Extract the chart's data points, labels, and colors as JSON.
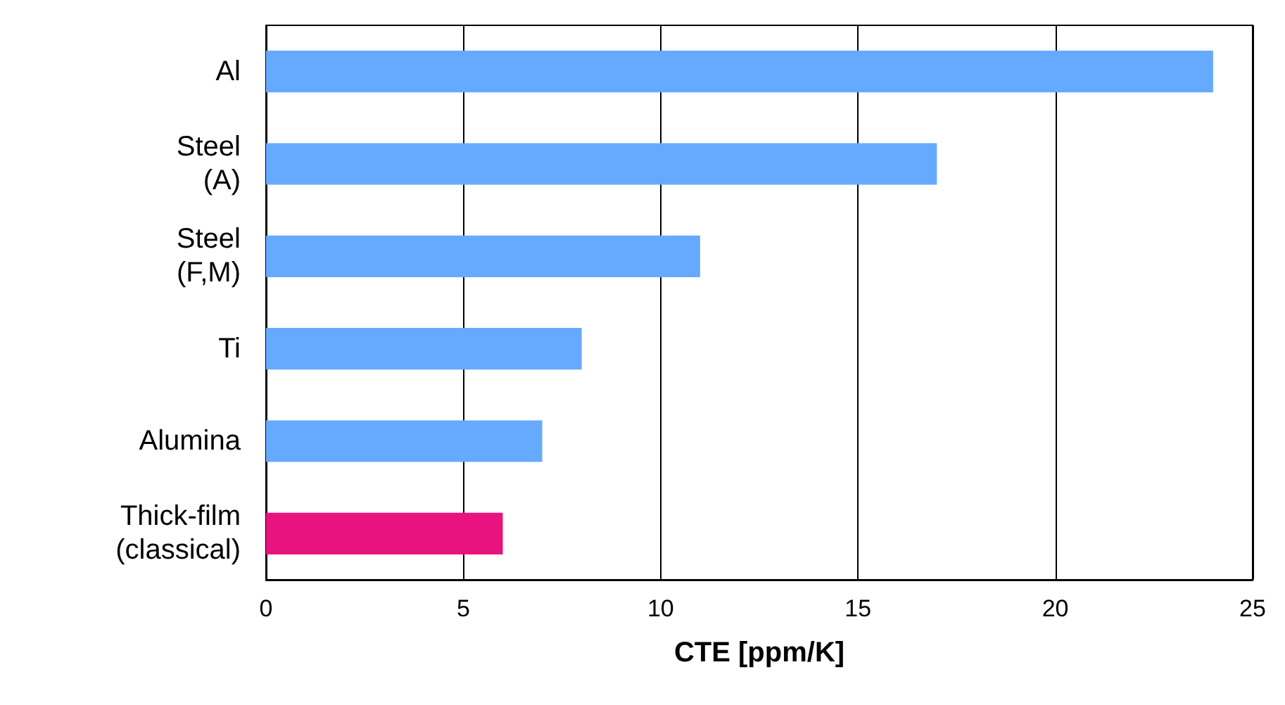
{
  "chart_data": {
    "type": "bar",
    "orientation": "horizontal",
    "xlabel": "CTE [ppm/K]",
    "categories": [
      "Al",
      "Steel\n(A)",
      "Steel\n(F,M)",
      "Ti",
      "Alumina",
      "Thick-film\n(classical)"
    ],
    "values": [
      24,
      17,
      11,
      8,
      7,
      6
    ],
    "colors": [
      "#66aaff",
      "#66aaff",
      "#66aaff",
      "#66aaff",
      "#66aaff",
      "#e8137f"
    ],
    "xlim": [
      0,
      25
    ],
    "xticks": [
      0,
      5,
      10,
      15,
      20,
      25
    ],
    "grid": "x"
  }
}
